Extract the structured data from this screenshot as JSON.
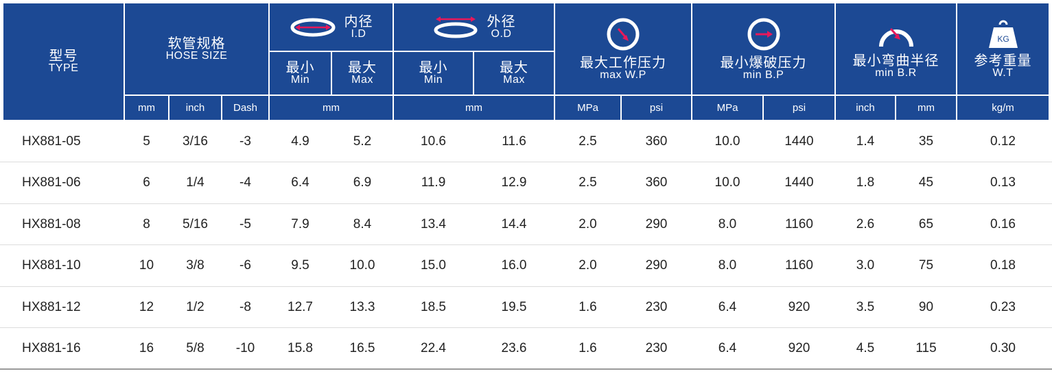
{
  "header": {
    "type": {
      "zh": "型号",
      "en": "TYPE"
    },
    "hose_size": {
      "zh": "软管规格",
      "en": "HOSE SIZE"
    },
    "id": {
      "zh": "内径",
      "en": "I.D",
      "icon": "inner-diameter-icon"
    },
    "od": {
      "zh": "外径",
      "en": "O.D",
      "icon": "outer-diameter-icon"
    },
    "min": {
      "zh": "最小",
      "en": "Min"
    },
    "max": {
      "zh": "最大",
      "en": "Max"
    },
    "wp": {
      "zh": "最大工作压力",
      "en": "max W.P",
      "icon": "pressure-gauge-icon"
    },
    "bp": {
      "zh": "最小爆破压力",
      "en": "min B.P",
      "icon": "burst-gauge-icon"
    },
    "br": {
      "zh": "最小弯曲半径",
      "en": "min B.R",
      "icon": "bend-radius-icon"
    },
    "wt": {
      "zh": "参考重量",
      "en": "W.T",
      "icon": "weight-icon",
      "icon_text": "KG"
    },
    "units": {
      "mm": "mm",
      "inch": "inch",
      "dash": "Dash",
      "mpa": "MPa",
      "psi": "psi",
      "kgm": "kg/m"
    }
  },
  "colors": {
    "header_bg": "#1c4994",
    "header_text": "#ffffff",
    "icon_accent": "#e8185a"
  },
  "rows": [
    [
      "HX881-05",
      "5",
      "3/16",
      "-3",
      "4.9",
      "5.2",
      "10.6",
      "11.6",
      "2.5",
      "360",
      "10.0",
      "1440",
      "1.4",
      "35",
      "0.12"
    ],
    [
      "HX881-06",
      "6",
      "1/4",
      "-4",
      "6.4",
      "6.9",
      "11.9",
      "12.9",
      "2.5",
      "360",
      "10.0",
      "1440",
      "1.8",
      "45",
      "0.13"
    ],
    [
      "HX881-08",
      "8",
      "5/16",
      "-5",
      "7.9",
      "8.4",
      "13.4",
      "14.4",
      "2.0",
      "290",
      "8.0",
      "1160",
      "2.6",
      "65",
      "0.16"
    ],
    [
      "HX881-10",
      "10",
      "3/8",
      "-6",
      "9.5",
      "10.0",
      "15.0",
      "16.0",
      "2.0",
      "290",
      "8.0",
      "1160",
      "3.0",
      "75",
      "0.18"
    ],
    [
      "HX881-12",
      "12",
      "1/2",
      "-8",
      "12.7",
      "13.3",
      "18.5",
      "19.5",
      "1.6",
      "230",
      "6.4",
      "920",
      "3.5",
      "90",
      "0.23"
    ],
    [
      "HX881-16",
      "16",
      "5/8",
      "-10",
      "15.8",
      "16.5",
      "22.4",
      "23.6",
      "1.6",
      "230",
      "6.4",
      "920",
      "4.5",
      "115",
      "0.30"
    ]
  ]
}
